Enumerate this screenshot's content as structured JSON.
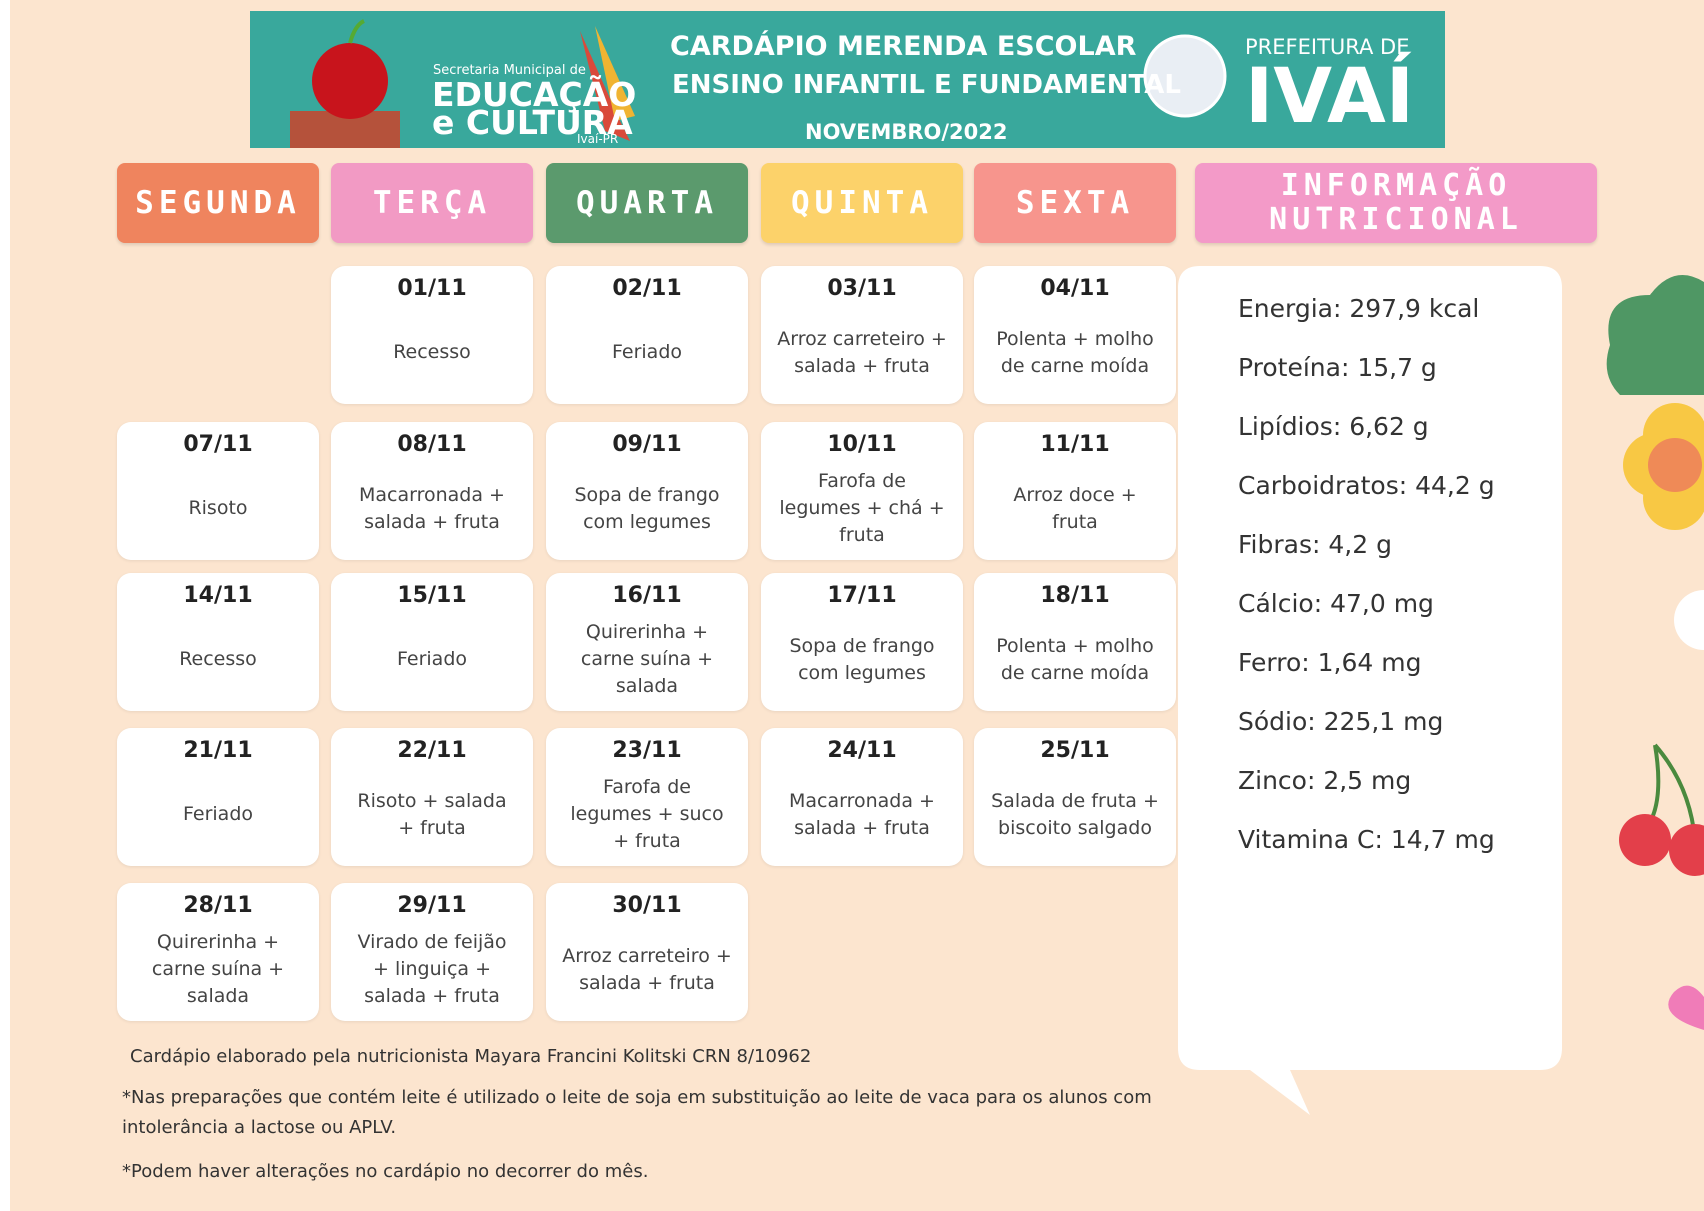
{
  "header": {
    "secretaria": "Secretaria Municipal de",
    "educacao": "EDUCAÇÃO",
    "cultura": "e CULTURA",
    "cidade": "Ivaí-PR",
    "title": "CARDÁPIO MERENDA ESCOLAR",
    "subtitle": "ENSINO INFANTIL E FUNDAMENTAL",
    "month": "NOVEMBRO/2022",
    "prefeitura": "PREFEITURA DE",
    "ivai": "IVAÍ"
  },
  "days": [
    "SEGUNDA",
    "TERÇA",
    "QUARTA",
    "QUINTA",
    "SEXTA"
  ],
  "info_title": "INFORMAÇÃO NUTRICIONAL",
  "weeks": [
    [
      null,
      {
        "date": "01/11",
        "menu": "Recesso"
      },
      {
        "date": "02/11",
        "menu": "Feriado"
      },
      {
        "date": "03/11",
        "menu": "Arroz carreteiro + salada + fruta"
      },
      {
        "date": "04/11",
        "menu": "Polenta + molho de carne moída"
      }
    ],
    [
      {
        "date": "07/11",
        "menu": "Risoto"
      },
      {
        "date": "08/11",
        "menu": "Macarronada + salada + fruta"
      },
      {
        "date": "09/11",
        "menu": "Sopa de frango com legumes"
      },
      {
        "date": "10/11",
        "menu": "Farofa de legumes + chá + fruta"
      },
      {
        "date": "11/11",
        "menu": "Arroz doce + fruta"
      }
    ],
    [
      {
        "date": "14/11",
        "menu": "Recesso"
      },
      {
        "date": "15/11",
        "menu": "Feriado"
      },
      {
        "date": "16/11",
        "menu": "Quirerinha + carne suína + salada"
      },
      {
        "date": "17/11",
        "menu": "Sopa de frango com legumes"
      },
      {
        "date": "18/11",
        "menu": "Polenta + molho de carne moída"
      }
    ],
    [
      {
        "date": "21/11",
        "menu": "Feriado"
      },
      {
        "date": "22/11",
        "menu": "Risoto + salada + fruta"
      },
      {
        "date": "23/11",
        "menu": "Farofa de legumes + suco + fruta"
      },
      {
        "date": "24/11",
        "menu": "Macarronada + salada + fruta"
      },
      {
        "date": "25/11",
        "menu": "Salada de fruta + biscoito salgado"
      }
    ],
    [
      {
        "date": "28/11",
        "menu": "Quirerinha + carne suína + salada"
      },
      {
        "date": "29/11",
        "menu": "Virado de feijão + linguiça + salada + fruta"
      },
      {
        "date": "30/11",
        "menu": "Arroz carreteiro + salada + fruta"
      },
      null,
      null
    ]
  ],
  "nutrition": [
    "Energia: 297,9 kcal",
    "Proteína: 15,7 g",
    "Lipídios: 6,62 g",
    "Carboidratos: 44,2 g",
    "Fibras: 4,2 g",
    "Cálcio: 47,0 mg",
    "Ferro: 1,64 mg",
    "Sódio: 225,1 mg",
    "Zinco: 2,5 mg",
    "Vitamina C: 14,7 mg"
  ],
  "notes": [
    "Cardápio elaborado pela nutricionista Mayara Francini Kolitski CRN 8/10962",
    "*Nas preparações que contém leite é utilizado o leite de soja em substituição ao leite de vaca para os alunos com intolerância a lactose ou APLV.",
    "*Podem haver alterações no cardápio no decorrer do mês."
  ]
}
